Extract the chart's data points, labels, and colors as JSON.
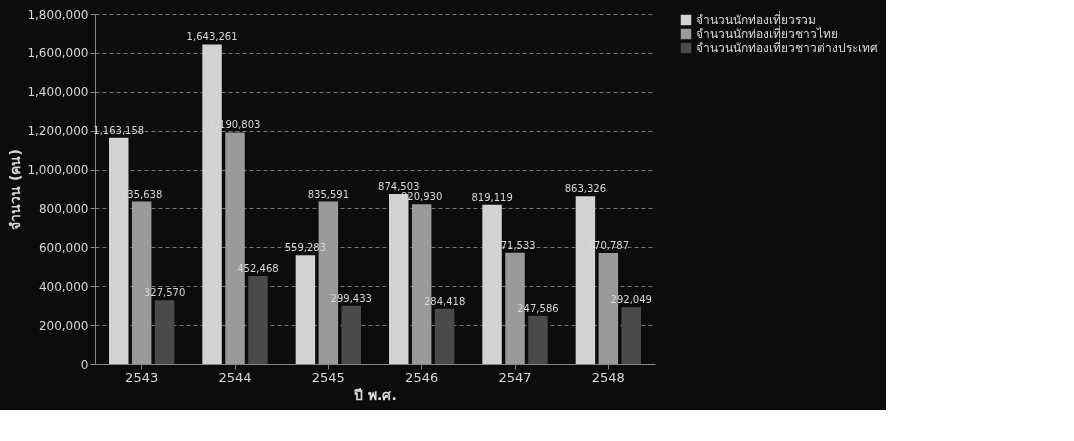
{
  "chart_data": {
    "type": "bar",
    "xlabel": "ปี พ.ศ.",
    "ylabel": "จำนวน (คน)",
    "categories": [
      "2543",
      "2544",
      "2545",
      "2546",
      "2547",
      "2548"
    ],
    "series": [
      {
        "name": "จำนวนนักท่องเที่ยวรวม",
        "color": "#d2d2d2",
        "values": [
          1163158,
          1643261,
          559283,
          874503,
          819119,
          863326
        ],
        "value_labels": [
          "1,163,158",
          "1,643,261",
          "559,283",
          "874,503",
          "819,119",
          "863,326"
        ]
      },
      {
        "name": "จำนวนนักท่องเที่ยวชาวไทย",
        "color": "#9a9a9a",
        "values": [
          835638,
          1190803,
          835591,
          820930,
          571533,
          570787
        ],
        "value_labels": [
          "835,638",
          "1,190,803",
          "835,591",
          "820,930",
          "571,533",
          "570,787"
        ]
      },
      {
        "name": "จำนวนนักท่องเที่ยวชาวต่างประเทศ",
        "color": "#4a4a4a",
        "values": [
          327570,
          452468,
          299433,
          284418,
          247586,
          292049
        ],
        "value_labels": [
          "327,570",
          "452,468",
          "299,433",
          "284,418",
          "247,586",
          "292,049"
        ]
      }
    ],
    "ylim": [
      0,
      1800000
    ],
    "yticks": [
      0,
      {
        "value": 200000,
        "label": "200,000"
      },
      {
        "value": 400000,
        "label": "400,000"
      },
      {
        "value": 600000,
        "label": "600,000"
      },
      {
        "value": 800000,
        "label": "800,000"
      },
      {
        "value": 1000000,
        "label": "1,000,000"
      },
      {
        "value": 1200000,
        "label": "1,200,000"
      },
      {
        "value": 1400000,
        "label": "1,400,000"
      },
      {
        "value": 1600000,
        "label": "1,600,000"
      },
      {
        "value": 1800000,
        "label": "1,800,000"
      }
    ],
    "grid": "y",
    "legend": "right"
  }
}
